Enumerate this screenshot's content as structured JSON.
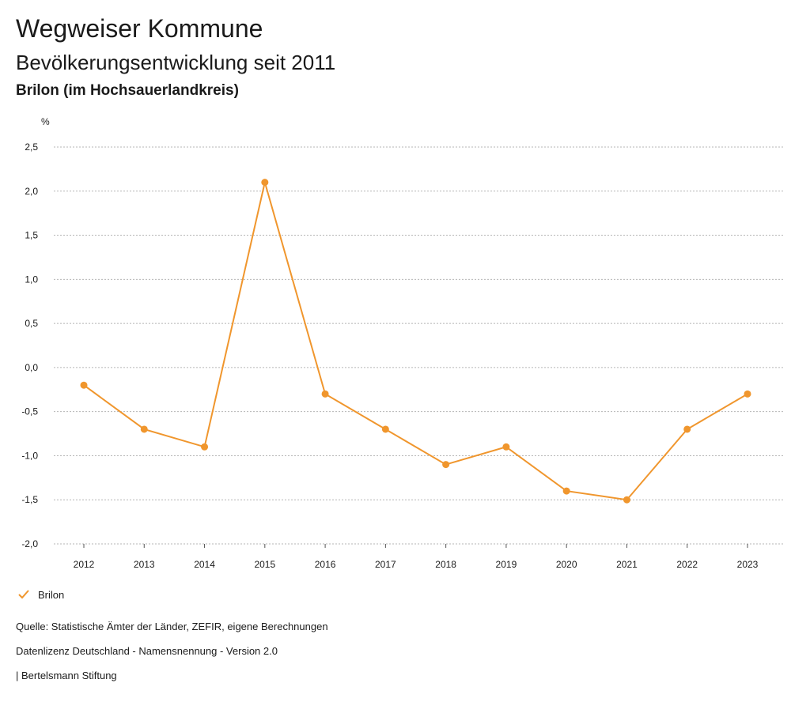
{
  "header": {
    "title": "Wegweiser Kommune",
    "subtitle": "Bevölkerungsentwicklung seit 2011",
    "region": "Brilon (im Hochsauerlandkreis)"
  },
  "colors": {
    "accent": "#f0962d",
    "grid": "#b5b5b5",
    "text": "#1a1a1a"
  },
  "legend": {
    "icon": "checkmark-icon",
    "label": "Brilon"
  },
  "footer": {
    "source": "Quelle: Statistische Ämter der Länder, ZEFIR, eigene Berechnungen",
    "license": "Datenlizenz Deutschland - Namensnennung - Version 2.0",
    "publisher": "| Bertelsmann Stiftung"
  },
  "chart_data": {
    "type": "line",
    "title": "Bevölkerungsentwicklung seit 2011",
    "xlabel": "",
    "ylabel": "%",
    "categories": [
      "2012",
      "2013",
      "2014",
      "2015",
      "2016",
      "2017",
      "2018",
      "2019",
      "2020",
      "2021",
      "2022",
      "2023"
    ],
    "series": [
      {
        "name": "Brilon",
        "values": [
          -0.2,
          -0.7,
          -0.9,
          2.1,
          -0.3,
          -0.7,
          -1.1,
          -0.9,
          -1.4,
          -1.5,
          -0.7,
          -0.3
        ]
      }
    ],
    "ylim": [
      -2.0,
      2.5
    ],
    "yticks": [
      "2,5",
      "2,0",
      "1,5",
      "1,0",
      "0,5",
      "0,0",
      "-0,5",
      "-1,0",
      "-1,5",
      "-2,0"
    ],
    "ytick_values": [
      2.5,
      2.0,
      1.5,
      1.0,
      0.5,
      0.0,
      -0.5,
      -1.0,
      -1.5,
      -2.0
    ],
    "grid": true,
    "legend_position": "bottom-left"
  }
}
